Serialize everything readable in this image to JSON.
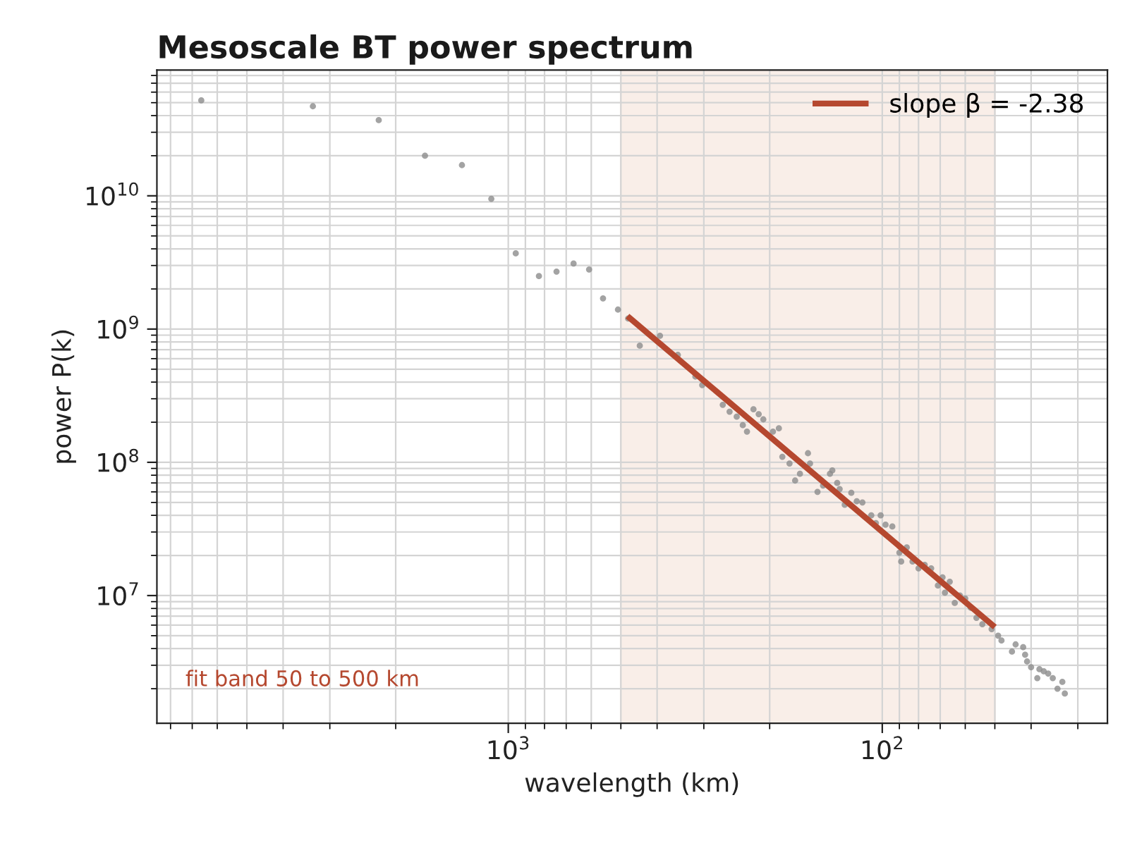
{
  "chart_data": {
    "type": "scatter",
    "title": "Mesoscale BT power spectrum",
    "xlabel": "wavelength (km)",
    "ylabel": "power P(k)",
    "log": "xy",
    "xlim": [
      8700,
      25
    ],
    "ylim": [
      1100000.0,
      88000000000.0
    ],
    "xticks": [
      {
        "value": 1000,
        "label": "10$^{3}$"
      },
      {
        "value": 100,
        "label": "10$^{2}$"
      }
    ],
    "yticks": [
      {
        "value": 10000000.0,
        "label": "10$^{7}$"
      },
      {
        "value": 100000000.0,
        "label": "10$^{8}$"
      },
      {
        "value": 1000000000.0,
        "label": "10$^{9}$"
      },
      {
        "value": 10000000000.0,
        "label": "10$^{10}$"
      }
    ],
    "grid": true,
    "legend": "top right",
    "bands": [
      {
        "axis": "x",
        "from": 500,
        "to": 50,
        "color": "#f9eee8"
      }
    ],
    "annotations": [
      "fit band 50 to 500 km"
    ],
    "series": [
      {
        "marker": "circle",
        "color": "#8c8c8c",
        "x": [
          6620,
          3330,
          2220,
          1670,
          1330,
          1110,
          955,
          828,
          743,
          669,
          608,
          558,
          509,
          478,
          445,
          393,
          352,
          316,
          303,
          267,
          256,
          245,
          236,
          230,
          221,
          214,
          208,
          196,
          189,
          185,
          177,
          171,
          166,
          158,
          156,
          149,
          144,
          138,
          136,
          132,
          130,
          126,
          121,
          117,
          113,
          107,
          104,
          101,
          98,
          94,
          90,
          89,
          86,
          83,
          80,
          77,
          74,
          71,
          69,
          68,
          66,
          64,
          62,
          60,
          58,
          56,
          54,
          51,
          49,
          48,
          45,
          44,
          42,
          41.5,
          41,
          40,
          38.5,
          38,
          37,
          36,
          35,
          34,
          33,
          32.5
        ],
        "values": [
          52000000000.0,
          47000000000.0,
          37000000000.0,
          20000000000.0,
          17000000000.0,
          9500000000.0,
          3700000000.0,
          2500000000.0,
          2700000000.0,
          3100000000.0,
          2800000000.0,
          1700000000.0,
          1400000000.0,
          1200000000.0,
          750000000.0,
          890000000.0,
          640000000.0,
          440000000.0,
          380000000.0,
          270000000.0,
          240000000.0,
          220000000.0,
          190000000.0,
          170000000.0,
          250000000.0,
          230000000.0,
          210000000.0,
          170000000.0,
          180000000.0,
          110000000.0,
          98000000.0,
          73000000.0,
          82000000.0,
          117000000.0,
          98000000.0,
          60000000.0,
          67000000.0,
          82000000.0,
          87000000.0,
          70000000.0,
          63000000.0,
          48000000.0,
          59000000.0,
          51000000.0,
          50000000.0,
          40000000.0,
          35000000.0,
          40000000.0,
          34000000.0,
          33000000.0,
          21000000.0,
          18000000.0,
          23000000.0,
          18000000.0,
          16000000.0,
          17000000.0,
          16000000.0,
          11900000.0,
          13700000.0,
          10500000.0,
          12700000.0,
          8800000.0,
          10000000.0,
          9500000.0,
          8100000.0,
          6800000.0,
          6100000.0,
          5600000.0,
          5000000.0,
          4600000.0,
          3800000.0,
          4300000.0,
          4100000.0,
          3600000.0,
          3200000.0,
          2900000.0,
          2400000.0,
          2800000.0,
          2700000.0,
          2600000.0,
          2400000.0,
          2000000.0,
          2250000.0,
          1840000.0
        ]
      },
      {
        "type": "line",
        "marker": "none",
        "name": "slope β = -2.38",
        "color": "#b5482f",
        "x": [
          480,
          50
        ],
        "values": [
          1250000000.0,
          5800000.0
        ]
      }
    ]
  }
}
